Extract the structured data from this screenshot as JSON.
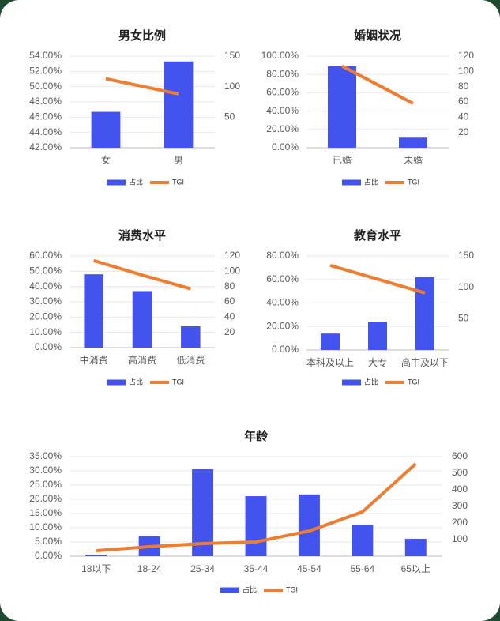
{
  "chart_data": [
    {
      "type": "bar",
      "title": "男女比例",
      "categories": [
        "女",
        "男"
      ],
      "series": [
        {
          "name": "占比",
          "color": "#4353ee",
          "values": [
            46.7,
            53.3
          ]
        },
        {
          "name": "TGI",
          "color": "#ee7d31",
          "type": "line",
          "axis": "y2",
          "values": [
            113,
            88
          ]
        }
      ],
      "ylim": [
        42,
        54
      ],
      "yticks": [
        {
          "value": 42,
          "label": "42.00%"
        },
        {
          "value": 44,
          "label": "44.00%"
        },
        {
          "value": 46,
          "label": "46.00%"
        },
        {
          "value": 48,
          "label": "48.00%"
        },
        {
          "value": 50,
          "label": "50.00%"
        },
        {
          "value": 52,
          "label": "52.00%"
        },
        {
          "value": 54,
          "label": "54.00%"
        }
      ],
      "y2lim": [
        0,
        150
      ],
      "y2ticks": [
        50,
        100,
        150
      ],
      "grid": true
    },
    {
      "type": "bar",
      "title": "婚姻状况",
      "categories": [
        "已婚",
        "未婚"
      ],
      "series": [
        {
          "name": "占比",
          "color": "#4353ee",
          "values": [
            89,
            11
          ]
        },
        {
          "name": "TGI",
          "color": "#ee7d31",
          "type": "line",
          "axis": "y2",
          "values": [
            107,
            58
          ]
        }
      ],
      "ylim": [
        0,
        100
      ],
      "yticks": [
        {
          "value": 0,
          "label": "0.00%"
        },
        {
          "value": 20,
          "label": "20.00%"
        },
        {
          "value": 40,
          "label": "40.00%"
        },
        {
          "value": 60,
          "label": "60.00%"
        },
        {
          "value": 80,
          "label": "80.00%"
        },
        {
          "value": 100,
          "label": "100.00%"
        }
      ],
      "y2lim": [
        0,
        120
      ],
      "y2ticks": [
        20,
        40,
        60,
        80,
        100,
        120
      ],
      "grid": true
    },
    {
      "type": "bar",
      "title": "消费水平",
      "categories": [
        "中消费",
        "高消费",
        "低消费"
      ],
      "series": [
        {
          "name": "占比",
          "color": "#4353ee",
          "values": [
            48,
            37,
            14
          ]
        },
        {
          "name": "TGI",
          "color": "#ee7d31",
          "type": "line",
          "axis": "y2",
          "values": [
            114,
            95,
            77
          ]
        }
      ],
      "ylim": [
        0,
        60
      ],
      "yticks": [
        {
          "value": 0,
          "label": "0.00%"
        },
        {
          "value": 10,
          "label": "10.00%"
        },
        {
          "value": 20,
          "label": "20.00%"
        },
        {
          "value": 30,
          "label": "30.00%"
        },
        {
          "value": 40,
          "label": "40.00%"
        },
        {
          "value": 50,
          "label": "50.00%"
        },
        {
          "value": 60,
          "label": "60.00%"
        }
      ],
      "y2lim": [
        0,
        120
      ],
      "y2ticks": [
        20,
        40,
        60,
        80,
        100,
        120
      ],
      "grid": true
    },
    {
      "type": "bar",
      "title": "教育水平",
      "categories": [
        "本科及以上",
        "大专",
        "高中及以下"
      ],
      "series": [
        {
          "name": "占比",
          "color": "#4353ee",
          "values": [
            14,
            24,
            62
          ]
        },
        {
          "name": "TGI",
          "color": "#ee7d31",
          "type": "line",
          "axis": "y2",
          "values": [
            135,
            113,
            91
          ]
        }
      ],
      "ylim": [
        0,
        80
      ],
      "yticks": [
        {
          "value": 0,
          "label": "0.00%"
        },
        {
          "value": 20,
          "label": "20.00%"
        },
        {
          "value": 40,
          "label": "40.00%"
        },
        {
          "value": 60,
          "label": "60.00%"
        },
        {
          "value": 80,
          "label": "80.00%"
        }
      ],
      "y2lim": [
        0,
        150
      ],
      "y2ticks": [
        50,
        100,
        150
      ],
      "grid": true
    },
    {
      "type": "bar",
      "title": "年龄",
      "categories": [
        "18以下",
        "18-24",
        "25-34",
        "35-44",
        "45-54",
        "55-64",
        "65以上"
      ],
      "series": [
        {
          "name": "占比",
          "color": "#4353ee",
          "values": [
            0.5,
            7,
            30.6,
            21.1,
            21.7,
            11.1,
            6.1
          ]
        },
        {
          "name": "TGI",
          "color": "#ee7d31",
          "type": "line",
          "axis": "y2",
          "values": [
            33,
            57,
            76,
            86,
            152,
            267,
            557
          ]
        }
      ],
      "ylim": [
        0,
        35
      ],
      "yticks": [
        {
          "value": 0,
          "label": "0.00%"
        },
        {
          "value": 5,
          "label": "5.00%"
        },
        {
          "value": 10,
          "label": "10.00%"
        },
        {
          "value": 15,
          "label": "15.00%"
        },
        {
          "value": 20,
          "label": "20.00%"
        },
        {
          "value": 25,
          "label": "25.00%"
        },
        {
          "value": 30,
          "label": "30.00%"
        },
        {
          "value": 35,
          "label": "35.00%"
        }
      ],
      "y2lim": [
        0,
        600
      ],
      "y2ticks": [
        100,
        200,
        300,
        400,
        500,
        600
      ],
      "grid": true
    }
  ]
}
